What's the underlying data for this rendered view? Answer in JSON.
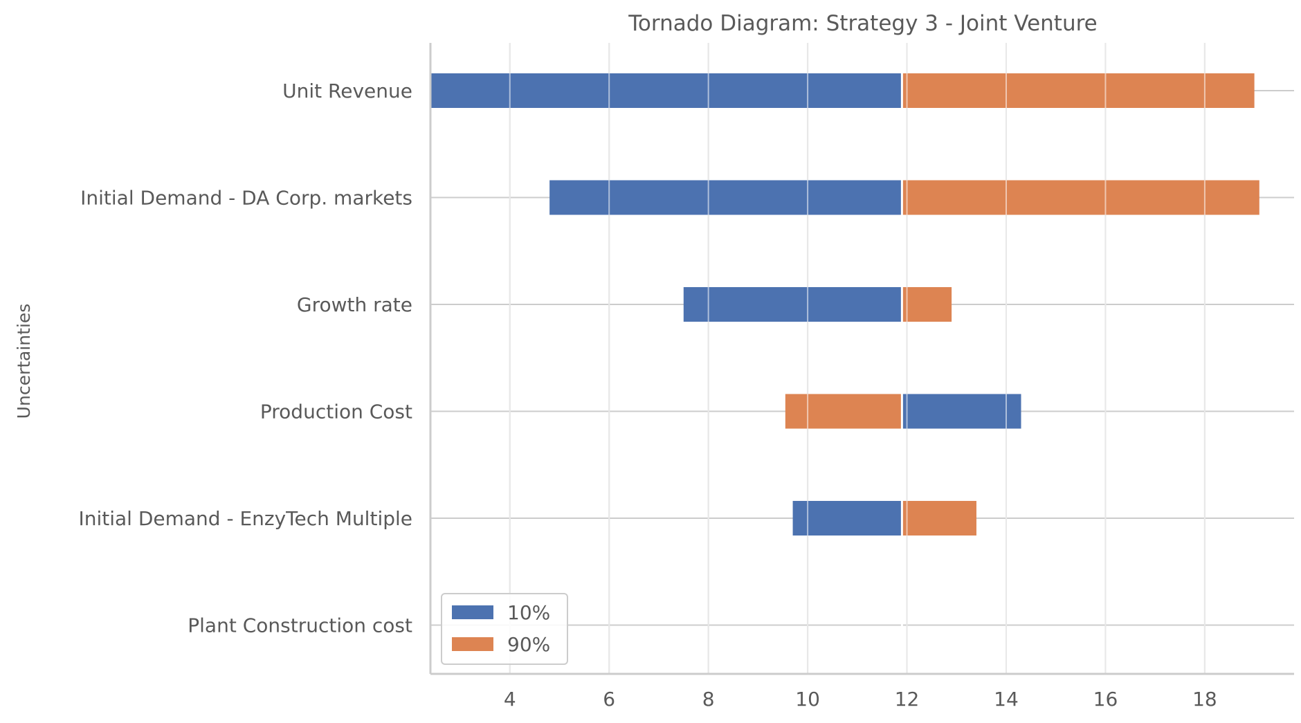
{
  "chart_data": {
    "type": "bar",
    "orientation": "horizontal",
    "title": "Tornado Diagram: Strategy 3 - Joint Venture",
    "xlabel": "",
    "ylabel": "Uncertainties",
    "xlim": [
      2.4,
      19.8
    ],
    "x_ticks": [
      4,
      6,
      8,
      10,
      12,
      14,
      16,
      18
    ],
    "base_value": 11.9,
    "grid": true,
    "legend_position": "lower-left",
    "categories": [
      "Unit Revenue",
      "Initial Demand - DA Corp. markets",
      "Growth rate",
      "Production Cost",
      "Initial Demand - EnzyTech Multiple",
      "Plant Construction cost"
    ],
    "series": [
      {
        "name": "10%",
        "color": "#4c72b0",
        "values": [
          2.4,
          4.8,
          7.5,
          14.3,
          9.7,
          11.9
        ]
      },
      {
        "name": "90%",
        "color": "#dd8452",
        "values": [
          19.0,
          19.1,
          12.9,
          9.55,
          13.4,
          11.9
        ]
      }
    ]
  }
}
